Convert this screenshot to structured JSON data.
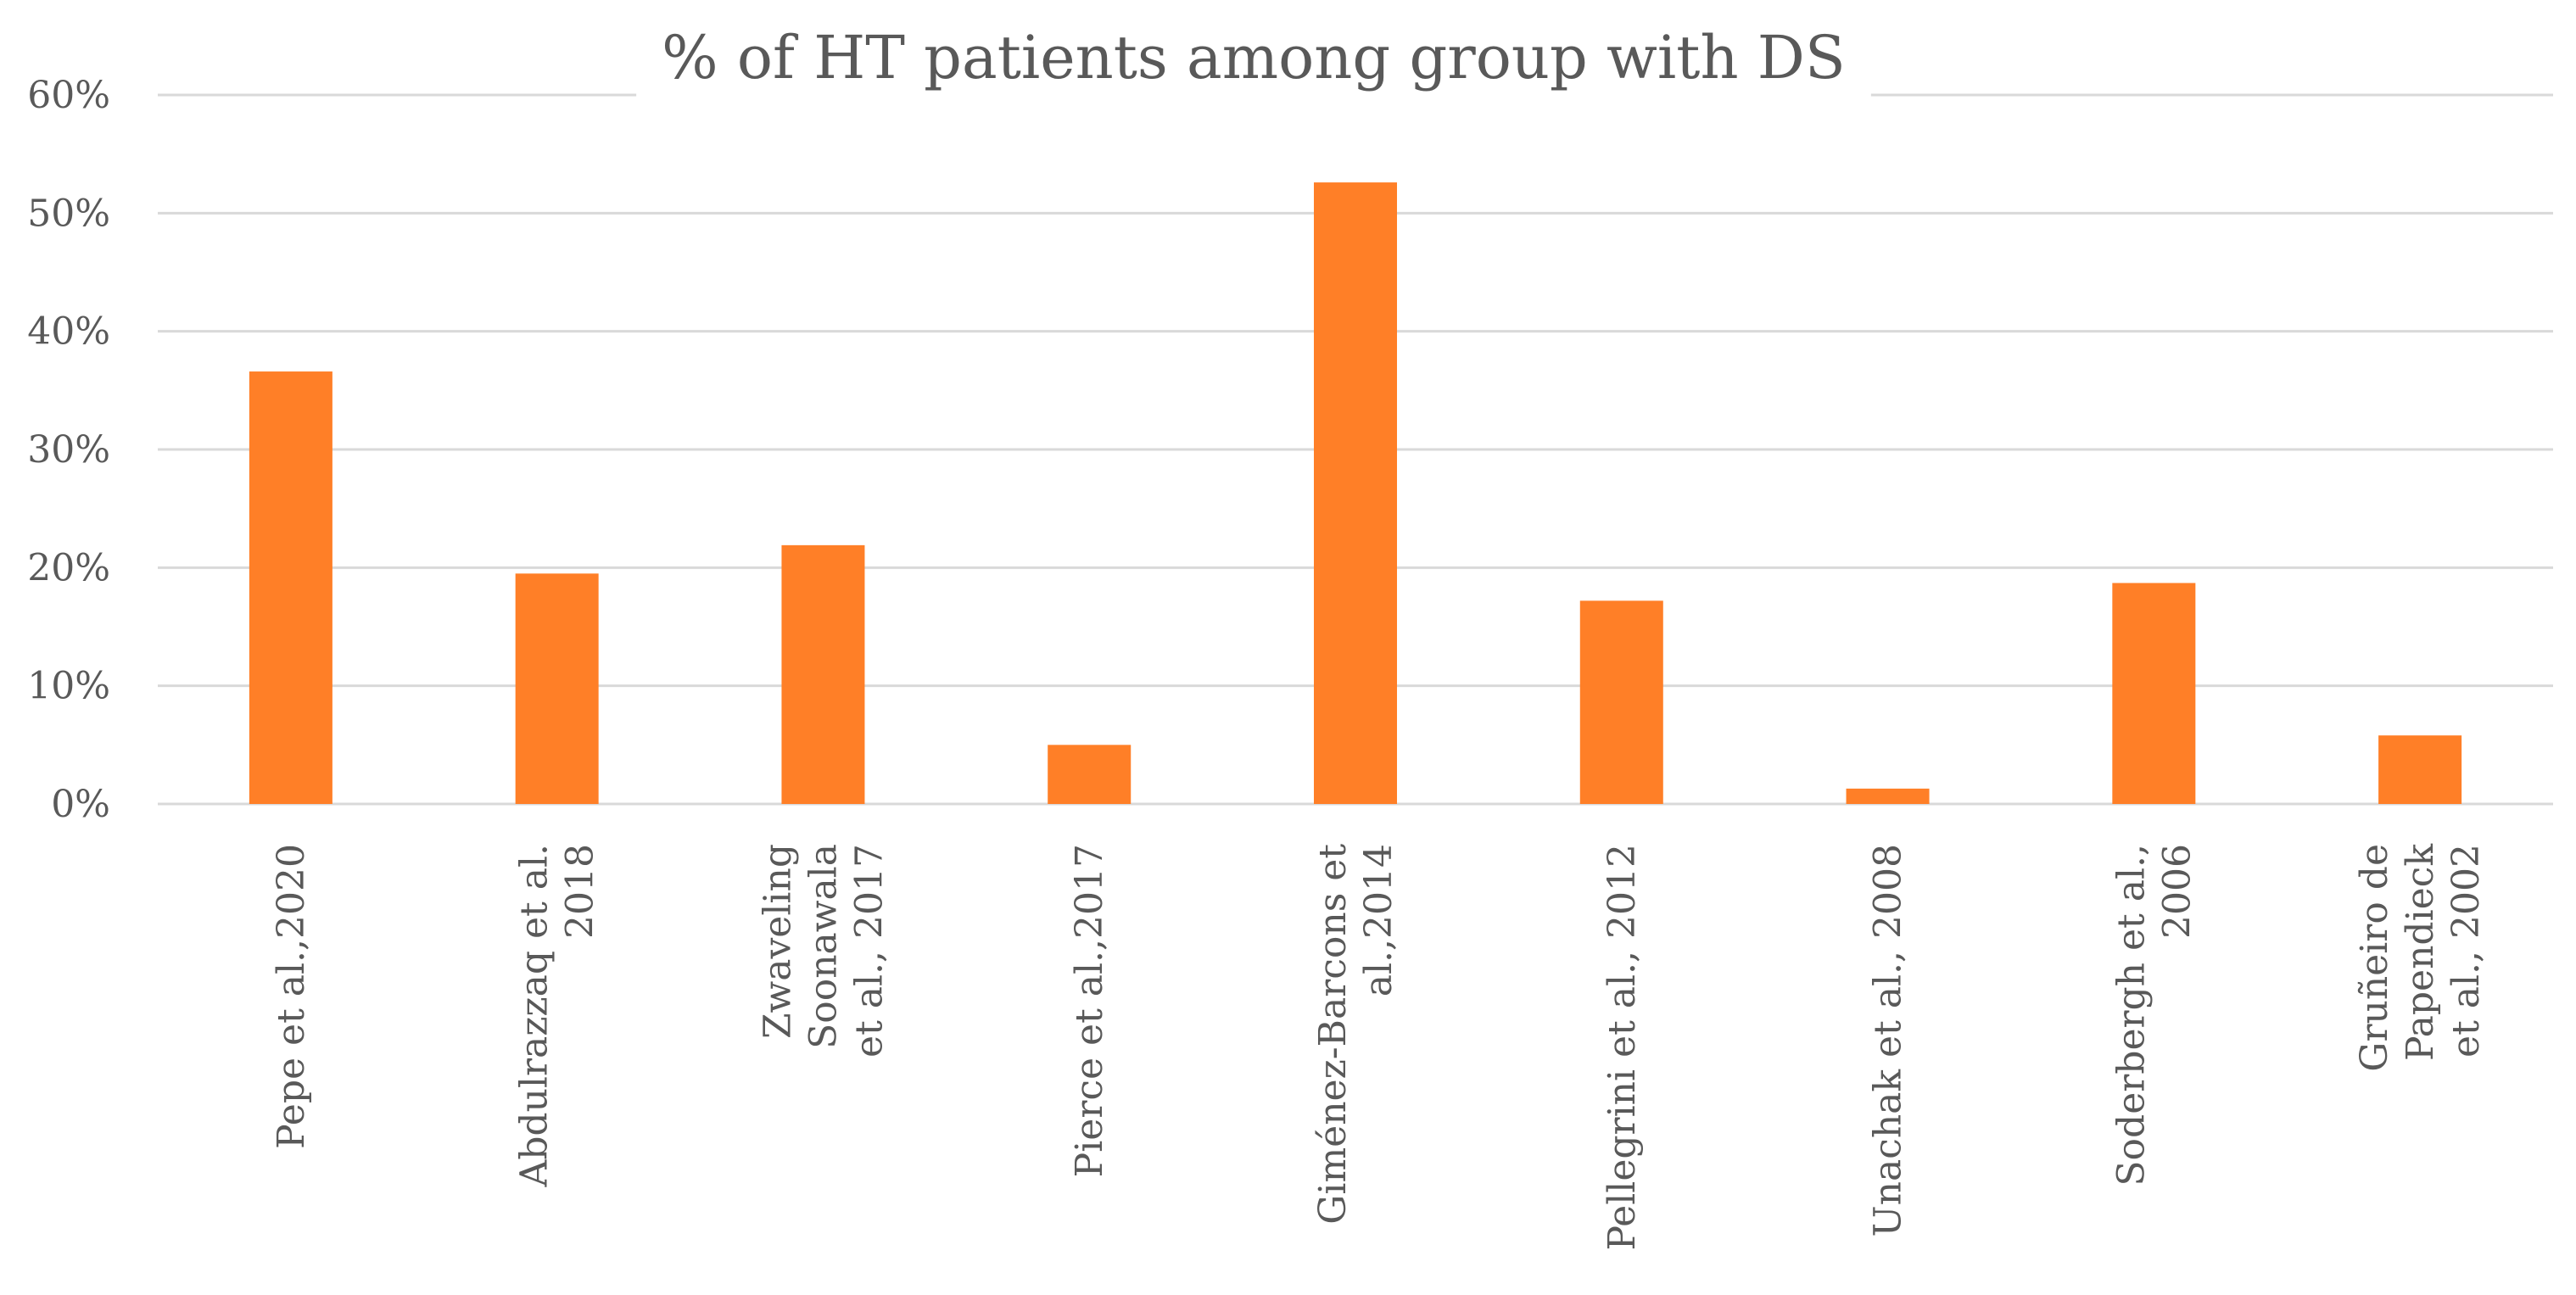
{
  "chart_data": {
    "type": "bar",
    "title": "% of HT patients among group with DS",
    "xlabel": "",
    "ylabel": "",
    "ylim": [
      0,
      0.6
    ],
    "yticks": [
      {
        "value": 0,
        "label": "0%"
      },
      {
        "value": 0.1,
        "label": "10%"
      },
      {
        "value": 0.2,
        "label": "20%"
      },
      {
        "value": 0.3,
        "label": "30%"
      },
      {
        "value": 0.4,
        "label": "40%"
      },
      {
        "value": 0.5,
        "label": "50%"
      },
      {
        "value": 0.6,
        "label": "60%"
      }
    ],
    "grid": true,
    "legend": "none",
    "categories": [
      {
        "lines": [
          "Pepe et al.,2020"
        ]
      },
      {
        "lines": [
          "Abdulrazzaq et al.",
          "2018"
        ]
      },
      {
        "lines": [
          "Zwaveling",
          "Soonawala",
          "et al., 2017"
        ]
      },
      {
        "lines": [
          "Pierce et al.,2017"
        ]
      },
      {
        "lines": [
          "Giménez-Barcons et",
          "al.,2014"
        ]
      },
      {
        "lines": [
          "Pellegrini et al., 2012"
        ]
      },
      {
        "lines": [
          "Unachak et al., 2008"
        ]
      },
      {
        "lines": [
          "Soderbergh et al.,",
          "2006"
        ]
      },
      {
        "lines": [
          "Gruñeiro de",
          "Papendieck",
          "et al., 2002"
        ]
      }
    ],
    "series": [
      {
        "name": "% of HT patients among group with DS",
        "color": "#ff7f27",
        "values": [
          0.366,
          0.195,
          0.219,
          0.05,
          0.526,
          0.172,
          0.013,
          0.187,
          0.058
        ]
      }
    ]
  }
}
